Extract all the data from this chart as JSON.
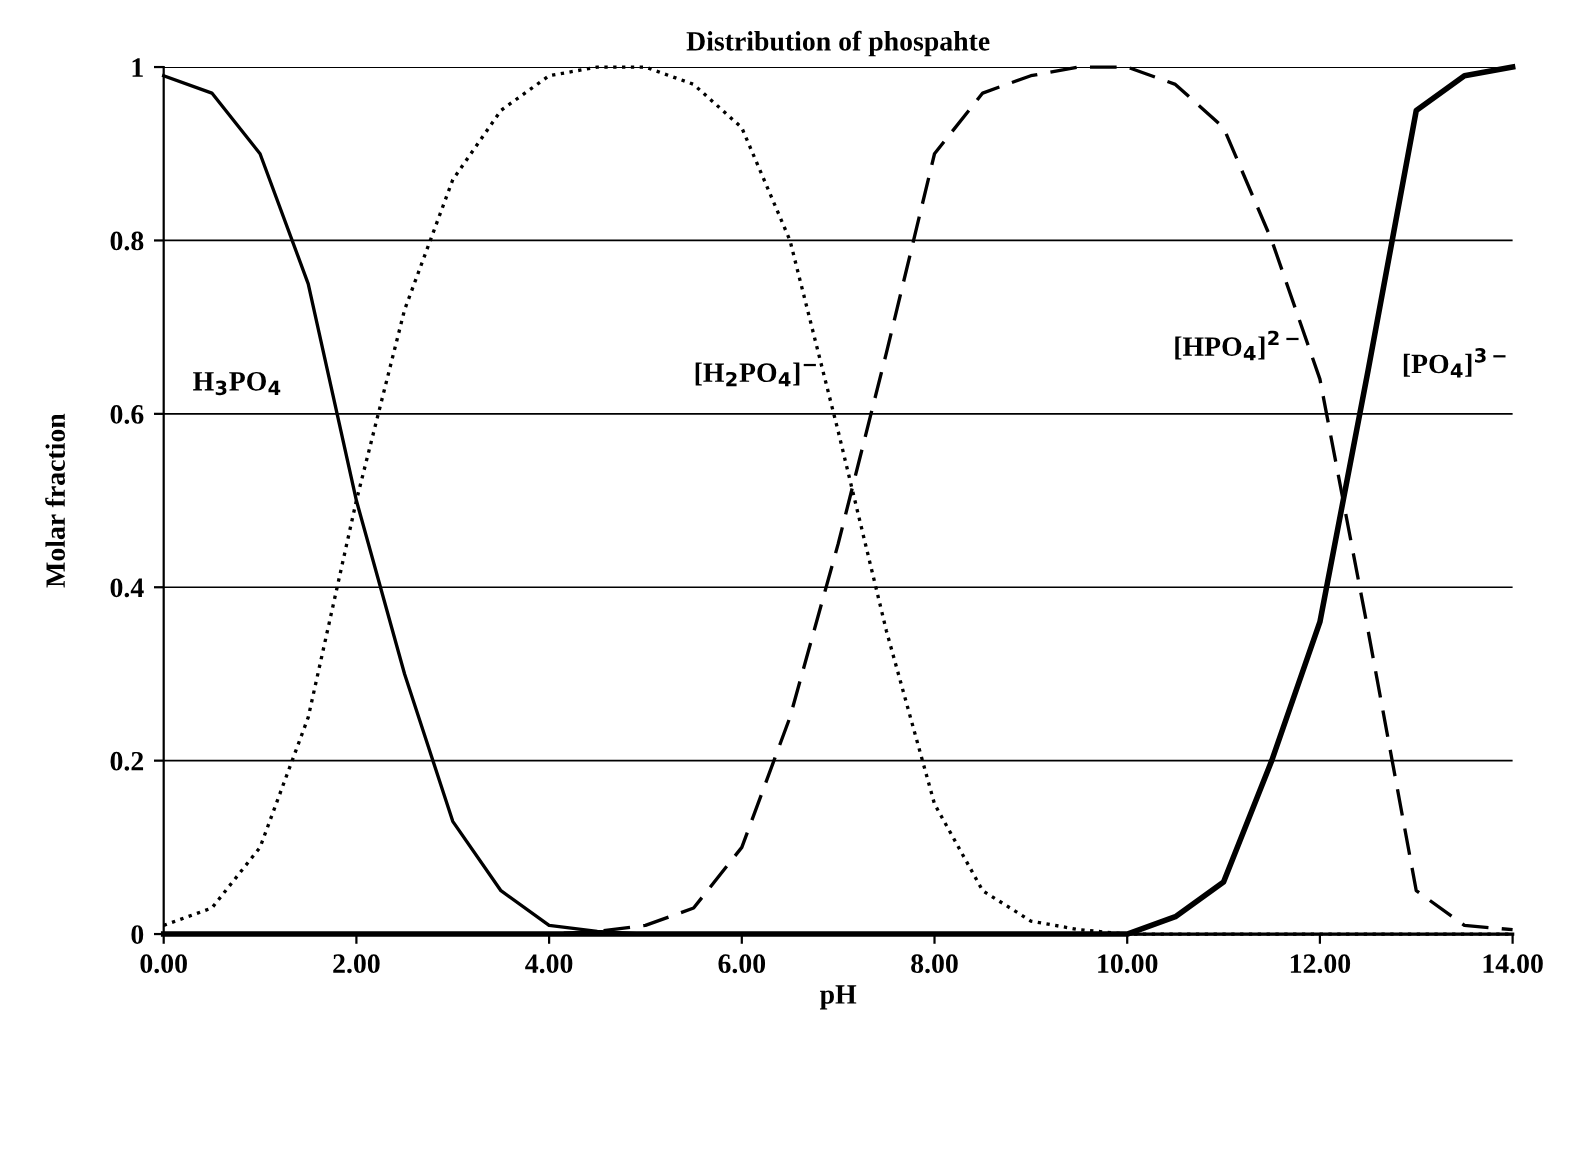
{
  "chart_data": {
    "type": "line",
    "title": "Distribution of phospahte",
    "xlabel": "pH",
    "ylabel": "Molar fraction",
    "x": [
      0,
      0.5,
      1,
      1.5,
      2,
      2.5,
      3,
      3.5,
      4,
      4.5,
      5,
      5.5,
      6,
      6.5,
      7,
      7.5,
      8,
      8.5,
      9,
      9.5,
      10,
      10.5,
      11,
      11.5,
      12,
      12.5,
      13,
      13.5,
      14
    ],
    "series": [
      {
        "name": "H$_{3}$PO$_{4}$",
        "color": "#000000",
        "line_style": "solid",
        "values": [
          0.99,
          0.97,
          0.9,
          0.75,
          0.5,
          0.3,
          0.13,
          0.05,
          0.01,
          0.003,
          0,
          0,
          0,
          0,
          0,
          0,
          0,
          0,
          0,
          0,
          0,
          0,
          0,
          0,
          0,
          0,
          0,
          0,
          0
        ]
      },
      {
        "name": "[H$_{2}$PO$_{4}$]$^{−}$",
        "color": "#000000",
        "line_style": "dotted",
        "values": [
          0.01,
          0.03,
          0.1,
          0.25,
          0.5,
          0.72,
          0.87,
          0.95,
          0.99,
          1.0,
          1.0,
          0.98,
          0.93,
          0.8,
          0.58,
          0.35,
          0.15,
          0.05,
          0.015,
          0.005,
          0,
          0,
          0,
          0,
          0,
          0,
          0,
          0,
          0
        ]
      },
      {
        "name": "[HPO$_{4}$]$^{2−}$",
        "color": "#000000",
        "line_style": "dashed",
        "values": [
          0,
          0,
          0,
          0,
          0,
          0,
          0,
          0,
          0,
          0.003,
          0.01,
          0.03,
          0.1,
          0.25,
          0.45,
          0.67,
          0.9,
          0.97,
          0.99,
          1.0,
          1.0,
          0.98,
          0.93,
          0.8,
          0.64,
          0.35,
          0.05,
          0.01,
          0.005
        ]
      },
      {
        "name": "[PO$_{4}$]$^{3−}$",
        "color": "#000000",
        "line_style": "solid",
        "values": [
          0,
          0,
          0,
          0,
          0,
          0,
          0,
          0,
          0,
          0,
          0,
          0,
          0,
          0,
          0,
          0,
          0,
          0,
          0,
          0,
          0,
          0.02,
          0.06,
          0.2,
          0.36,
          0.65,
          0.95,
          0.99,
          1.0
        ]
      }
    ],
    "xlim": [
      0,
      14
    ],
    "ylim": [
      0,
      1
    ],
    "xticks": [
      {
        "value": 0,
        "label": "0.00"
      },
      {
        "value": 2,
        "label": "2.00"
      },
      {
        "value": 4,
        "label": "4.00"
      },
      {
        "value": 6,
        "label": "6.00"
      },
      {
        "value": 8,
        "label": "8.00"
      },
      {
        "value": 10,
        "label": "10.00"
      },
      {
        "value": 12,
        "label": "12.00"
      },
      {
        "value": 14,
        "label": "14.00"
      }
    ],
    "yticks": [
      0,
      0.2,
      0.4,
      0.6,
      0.8,
      1
    ],
    "grid": "y",
    "legend": false,
    "marker": "none"
  }
}
